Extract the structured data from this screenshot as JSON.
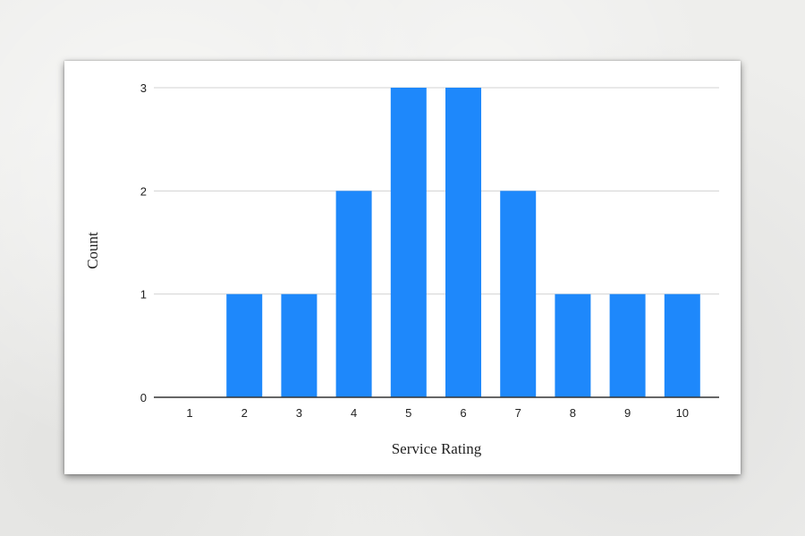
{
  "chart_data": {
    "type": "bar",
    "categories": [
      "1",
      "2",
      "3",
      "4",
      "5",
      "6",
      "7",
      "8",
      "9",
      "10"
    ],
    "values": [
      0,
      1,
      1,
      2,
      3,
      3,
      2,
      1,
      1,
      1
    ],
    "title": "",
    "xlabel": "Service Rating",
    "ylabel": "Count",
    "ylim": [
      0,
      3
    ],
    "yticks": [
      0,
      1,
      2,
      3
    ],
    "grid": true,
    "legend": "none",
    "bar_color": "#1e88fb",
    "gridline_color": "#d3d3d3",
    "axis_color": "#333333"
  }
}
